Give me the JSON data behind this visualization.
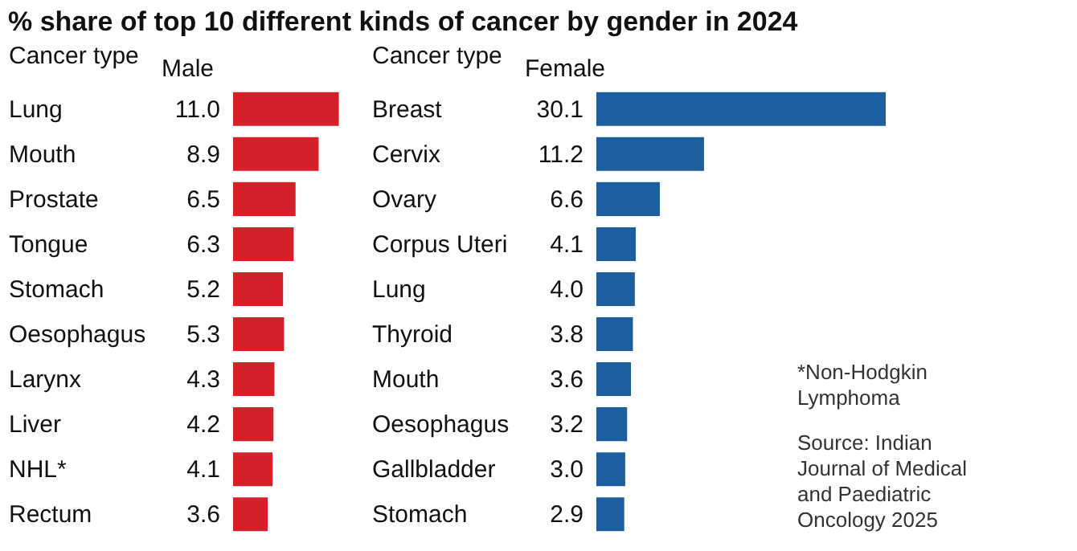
{
  "chart_data": [
    {
      "type": "bar",
      "orientation": "horizontal",
      "title": "% share of top 10 different kinds of cancer by gender in 2024",
      "ylabel": "Cancer type",
      "xlabel": "Male",
      "categories": [
        "Lung",
        "Mouth",
        "Prostate",
        "Tongue",
        "Stomach",
        "Oesophagus",
        "Larynx",
        "Liver",
        "NHL*",
        "Rectum"
      ],
      "values": [
        11.0,
        8.9,
        6.5,
        6.3,
        5.2,
        5.3,
        4.3,
        4.2,
        4.1,
        3.6
      ],
      "color": "#d42029",
      "value_labels": [
        "11.0",
        "8.9",
        "6.5",
        "6.3",
        "5.2",
        "5.3",
        "4.3",
        "4.2",
        "4.1",
        "3.6"
      ]
    },
    {
      "type": "bar",
      "orientation": "horizontal",
      "ylabel": "Cancer type",
      "xlabel": "Female",
      "categories": [
        "Breast",
        "Cervix",
        "Ovary",
        "Corpus Uteri",
        "Lung",
        "Thyroid",
        "Mouth",
        "Oesophagus",
        "Gallbladder",
        "Stomach"
      ],
      "values": [
        30.1,
        11.2,
        6.6,
        4.1,
        4.0,
        3.8,
        3.6,
        3.2,
        3.0,
        2.9
      ],
      "color": "#1d5f9e",
      "value_labels": [
        "30.1",
        "11.2",
        "6.6",
        "4.1",
        "4.0",
        "3.8",
        "3.6",
        "3.2",
        "3.0",
        "2.9"
      ],
      "annotations": [
        "*Non-Hodgkin Lymphoma",
        "Source: Indian Journal of Medical and Paediatric Oncology 2025"
      ]
    }
  ]
}
